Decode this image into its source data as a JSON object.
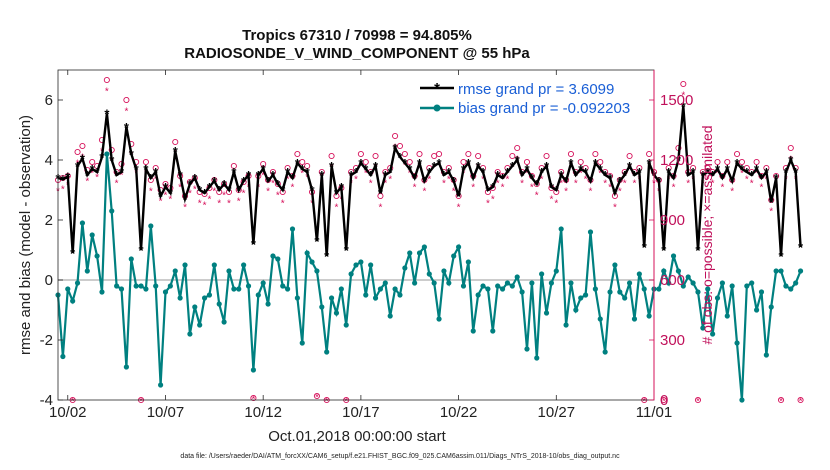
{
  "chart_data": {
    "type": "line",
    "title_line1": "Tropics 67310 / 70998 = 94.805%",
    "title_line2": "RADIOSONDE_V_WIND_COMPONENT @ 55 hPa",
    "ylabel": "rmse and bias (model - observation)",
    "ylabel_right": "# of obs: o=possible; ×=assimilated",
    "xlabel": "Oct.01,2018 00:00:00 start",
    "footnote": "data file: /Users/raeder/DAI/ATM_forcXX/CAM6_setup/f.e21.FHIST_BGC.f09_025.CAM6assim.011/Diags_NTrS_2018-10/obs_diag_output.nc",
    "xlim": [
      1.5,
      32
    ],
    "ylim": [
      -4,
      7
    ],
    "ylim_right": [
      0,
      1650
    ],
    "x_ticks": [
      2,
      7,
      12,
      17,
      22,
      27,
      32
    ],
    "x_tick_labels": [
      "10/02",
      "10/07",
      "10/12",
      "10/17",
      "10/22",
      "10/27",
      "11/01"
    ],
    "y_ticks": [
      -4,
      -2,
      0,
      2,
      4,
      6
    ],
    "y_tick_labels": [
      "-4",
      "-2",
      "0",
      "2",
      "4",
      "6"
    ],
    "y_ticks_right": [
      0,
      300,
      600,
      900,
      1200,
      1500
    ],
    "y_tick_labels_right": [
      "0",
      "300",
      "600",
      "900",
      "1200",
      "1500"
    ],
    "legend": [
      "rmse grand pr = 3.6099",
      "bias grand pr = -0.092203"
    ],
    "colors": {
      "rmse": "#000000",
      "bias": "#008080",
      "obs": "#d6105a",
      "zero": "#bbbbbb"
    },
    "x_start": 1.5,
    "x_step": 0.25,
    "series": [
      {
        "name": "rmse",
        "values": [
          3.4,
          3.35,
          3.45,
          0.9,
          3.8,
          4.05,
          3.5,
          3.7,
          3.6,
          4.1,
          5.55,
          4.0,
          3.5,
          3.6,
          5.1,
          4.2,
          3.7,
          1.0,
          3.7,
          3.4,
          3.6,
          2.8,
          3.1,
          2.9,
          4.3,
          3.5,
          2.7,
          3.2,
          3.4,
          3.0,
          2.9,
          3.1,
          3.3,
          3.0,
          3.2,
          3.0,
          3.6,
          3.0,
          3.3,
          3.5,
          1.2,
          3.5,
          3.7,
          3.3,
          3.5,
          3.2,
          3.0,
          3.6,
          3.4,
          3.9,
          3.7,
          3.6,
          3.0,
          1.3,
          3.5,
          0.8,
          3.8,
          2.9,
          3.1,
          1.0,
          3.5,
          3.6,
          3.9,
          3.7,
          3.5,
          3.8,
          2.9,
          3.5,
          3.6,
          4.4,
          4.1,
          3.9,
          3.7,
          3.4,
          3.9,
          3.3,
          3.6,
          3.8,
          3.9,
          3.5,
          3.6,
          3.3,
          2.8,
          3.7,
          3.9,
          3.4,
          3.8,
          3.6,
          3.0,
          3.1,
          3.5,
          3.4,
          3.6,
          3.8,
          4.0,
          3.5,
          3.7,
          3.4,
          3.2,
          3.6,
          3.8,
          3.1,
          3.0,
          3.5,
          3.3,
          3.9,
          3.5,
          3.7,
          3.6,
          3.3,
          3.9,
          3.7,
          3.5,
          3.4,
          2.9,
          3.3,
          3.5,
          3.8,
          3.5,
          3.6,
          1.1,
          3.9,
          3.5,
          3.3,
          1.0,
          3.6,
          3.4,
          4.0,
          5.8,
          3.5,
          3.6,
          1.0,
          3.5,
          3.6,
          3.5,
          3.7,
          3.4,
          3.7,
          3.3,
          3.9,
          3.7,
          3.6,
          3.5,
          3.7,
          3.4,
          3.6,
          2.6,
          3.4,
          0.8,
          3.6,
          4.0,
          3.6,
          1.1
        ]
      },
      {
        "name": "bias",
        "values": [
          -0.5,
          -2.55,
          -0.3,
          -0.7,
          -0.1,
          1.9,
          0.3,
          1.5,
          0.8,
          -0.4,
          4.2,
          2.3,
          -0.2,
          -0.3,
          -2.9,
          0.7,
          -0.2,
          -0.2,
          -0.3,
          1.8,
          -0.2,
          -3.5,
          -0.4,
          -0.2,
          0.3,
          -0.6,
          0.5,
          -1.8,
          -0.9,
          -1.5,
          -0.6,
          -0.5,
          0.5,
          -0.8,
          -1.4,
          0.3,
          -0.3,
          -0.3,
          0.5,
          -0.2,
          -3.0,
          -0.5,
          -0.1,
          -0.8,
          0.8,
          0.7,
          -0.2,
          -0.3,
          1.7,
          -0.6,
          -2.1,
          0.9,
          0.6,
          0.3,
          -0.9,
          -2.4,
          -0.6,
          -1.1,
          -0.3,
          -1.5,
          0.2,
          0.5,
          0.6,
          -0.5,
          0.5,
          -0.6,
          -0.3,
          -0.1,
          -1.2,
          -0.3,
          -0.5,
          0.4,
          0.9,
          -0.1,
          0.9,
          1.1,
          0.2,
          -0.1,
          -1.3,
          0.3,
          -0.1,
          0.8,
          1.1,
          -0.2,
          0.6,
          -1.7,
          -0.5,
          -0.2,
          -0.3,
          -1.7,
          -0.2,
          -0.3,
          -0.1,
          -0.2,
          0.1,
          -0.4,
          -2.3,
          -0.1,
          -2.6,
          0.2,
          -1.1,
          -0.1,
          0.3,
          1.7,
          -1.5,
          -0.1,
          -1.0,
          -0.6,
          -0.5,
          1.6,
          -0.3,
          -1.3,
          -2.4,
          -0.4,
          0.5,
          -0.4,
          -0.6,
          -0.1,
          -1.3,
          0.2,
          -0.3,
          -1.2,
          -0.3,
          -0.3,
          0.3,
          -0.1,
          0.8,
          0.3,
          -0.2,
          0.1,
          -0.1,
          -0.4,
          -1.6,
          -0.3,
          -1.8,
          -0.6,
          -0.1,
          -1.2,
          -0.2,
          -2.1,
          -4.0,
          -0.2,
          -0.1,
          -1.0,
          -0.4,
          -2.5,
          -0.9,
          0.3,
          0.3,
          -0.2,
          -0.3,
          -0.1,
          0.3
        ]
      },
      {
        "name": "obs_possible",
        "values": [
          1100,
          1110,
          1120,
          0,
          1240,
          1270,
          1150,
          1190,
          1170,
          1300,
          1600,
          1250,
          1140,
          1180,
          1500,
          1280,
          1190,
          0,
          1190,
          1100,
          1160,
          1050,
          1080,
          1060,
          1290,
          1120,
          1020,
          1090,
          1110,
          1040,
          1030,
          1060,
          1100,
          1040,
          1080,
          1040,
          1170,
          1050,
          1090,
          1120,
          10,
          1120,
          1180,
          1100,
          1140,
          1080,
          1040,
          1160,
          1120,
          1230,
          1190,
          1170,
          1040,
          20,
          1140,
          0,
          1220,
          1020,
          1060,
          0,
          1140,
          1160,
          1230,
          1190,
          1140,
          1220,
          1020,
          1140,
          1160,
          1320,
          1270,
          1230,
          1190,
          1120,
          1230,
          1100,
          1160,
          1220,
          1230,
          1140,
          1160,
          1100,
          1020,
          1190,
          1230,
          1120,
          1220,
          1160,
          1040,
          1060,
          1140,
          1120,
          1160,
          1220,
          1260,
          1140,
          1190,
          1120,
          1080,
          1160,
          1220,
          1060,
          1040,
          1140,
          1100,
          1230,
          1140,
          1190,
          1160,
          1100,
          1230,
          1190,
          1140,
          1120,
          1020,
          1100,
          1140,
          1220,
          1140,
          1160,
          0,
          1230,
          1140,
          1100,
          0,
          1160,
          1120,
          1260,
          1580,
          1140,
          1160,
          0,
          1140,
          1160,
          1140,
          1190,
          1120,
          1190,
          1100,
          1230,
          1190,
          1160,
          1140,
          1190,
          1120,
          1160,
          1000,
          1120,
          0,
          1160,
          1260,
          1160,
          0
        ]
      },
      {
        "name": "obs_assimilated",
        "values": [
          1050,
          1060,
          1080,
          0,
          1190,
          1220,
          1100,
          1140,
          1120,
          1250,
          1550,
          1200,
          1090,
          1130,
          1450,
          1230,
          1140,
          0,
          1140,
          1050,
          1110,
          1000,
          1030,
          1010,
          1240,
          1070,
          970,
          1040,
          1060,
          990,
          980,
          1010,
          1050,
          990,
          1030,
          990,
          1120,
          1000,
          1040,
          1070,
          10,
          1070,
          1130,
          1050,
          1090,
          1030,
          990,
          1110,
          1070,
          1180,
          1140,
          1120,
          990,
          20,
          1090,
          0,
          1170,
          970,
          1010,
          0,
          1090,
          1110,
          1180,
          1140,
          1090,
          1170,
          970,
          1090,
          1110,
          1270,
          1220,
          1180,
          1140,
          1070,
          1180,
          1050,
          1110,
          1170,
          1180,
          1090,
          1110,
          1050,
          970,
          1140,
          1180,
          1070,
          1170,
          1110,
          990,
          1010,
          1090,
          1070,
          1110,
          1170,
          1210,
          1090,
          1140,
          1070,
          1030,
          1110,
          1170,
          1010,
          990,
          1090,
          1050,
          1180,
          1090,
          1140,
          1110,
          1050,
          1180,
          1140,
          1090,
          1070,
          970,
          1050,
          1090,
          1170,
          1090,
          1110,
          0,
          1180,
          1090,
          1050,
          0,
          1110,
          1070,
          1210,
          1530,
          1090,
          1110,
          0,
          1090,
          1110,
          1090,
          1140,
          1070,
          1140,
          1050,
          1180,
          1140,
          1110,
          1090,
          1140,
          1070,
          1110,
          950,
          1070,
          0,
          1110,
          1210,
          1110,
          0
        ]
      }
    ]
  }
}
